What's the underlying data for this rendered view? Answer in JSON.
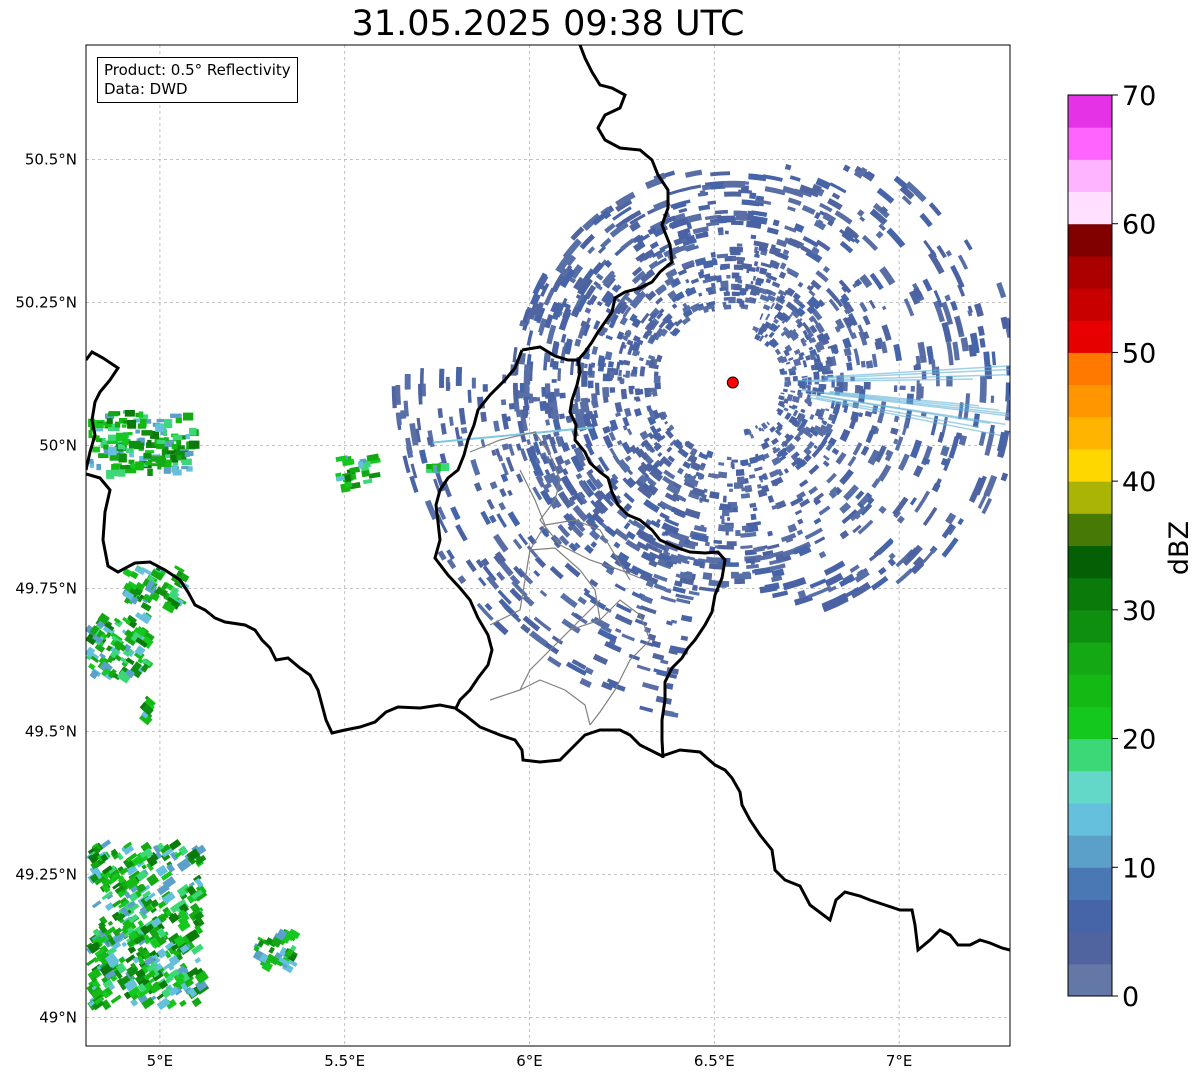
{
  "title": "31.05.2025 09:38 UTC",
  "info_box": {
    "product_line": "Product: 0.5° Reflectivity",
    "data_line": "Data: DWD"
  },
  "map": {
    "projection": "lat-lon",
    "lon_range": [
      4.8,
      7.3
    ],
    "lat_range": [
      48.95,
      50.7
    ],
    "x_ticks": [
      "5°E",
      "5.5°E",
      "6°E",
      "6.5°E",
      "7°E"
    ],
    "y_ticks": [
      "50.5°N",
      "50.25°N",
      "50°N",
      "49.75°N",
      "49.5°N",
      "49.25°N",
      "49°N"
    ],
    "gridlines": true,
    "radar_site": {
      "lon": 6.55,
      "lat": 50.11,
      "marker_color": "#ff0000"
    }
  },
  "colorbar": {
    "label": "dBZ",
    "range": [
      0,
      70
    ],
    "step": 2.5,
    "ticks": [
      "0",
      "10",
      "20",
      "30",
      "40",
      "50",
      "60",
      "70"
    ],
    "colors": [
      "#6478a8",
      "#5064a0",
      "#4664a8",
      "#4a78b4",
      "#5aa0c8",
      "#64c0dc",
      "#64d8c8",
      "#3cd878",
      "#14c81e",
      "#14b914",
      "#14a814",
      "#0f8f0f",
      "#0a7a0a",
      "#055f05",
      "#467a05",
      "#aab405",
      "#ffd700",
      "#ffb400",
      "#ff9600",
      "#ff7800",
      "#e60000",
      "#c80000",
      "#aa0000",
      "#800000",
      "#ffe0ff",
      "#ffb4ff",
      "#ff64ff",
      "#e632e6"
    ]
  }
}
